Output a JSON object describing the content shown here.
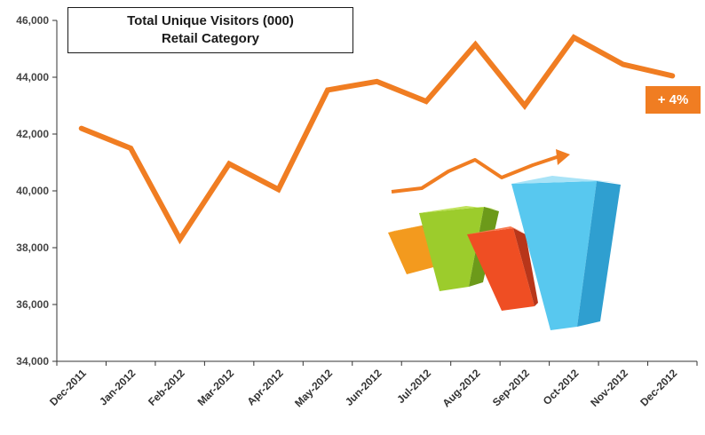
{
  "chart_data": {
    "type": "line",
    "title": "Total Unique Visitors (000)",
    "subtitle": "Retail Category",
    "categories": [
      "Dec-2011",
      "Jan-2012",
      "Feb-2012",
      "Mar-2012",
      "Apr-2012",
      "May-2012",
      "Jun-2012",
      "Jul-2012",
      "Aug-2012",
      "Sep-2012",
      "Oct-2012",
      "Nov-2012",
      "Dec-2012"
    ],
    "series": [
      {
        "values": [
          42200,
          41500,
          38300,
          40950,
          40050,
          43550,
          43850,
          43150,
          45150,
          43000,
          45400,
          44450,
          44050
        ]
      }
    ],
    "ylim": [
      34000,
      46000
    ],
    "yticks": [
      34000,
      36000,
      38000,
      40000,
      42000,
      44000,
      46000
    ],
    "ytick_labels": [
      "34,000",
      "36,000",
      "38,000",
      "40,000",
      "42,000",
      "44,000",
      "46,000"
    ],
    "annotation": "+ 4%",
    "grid": false,
    "legend": "none",
    "line_color": "#f07d22"
  }
}
